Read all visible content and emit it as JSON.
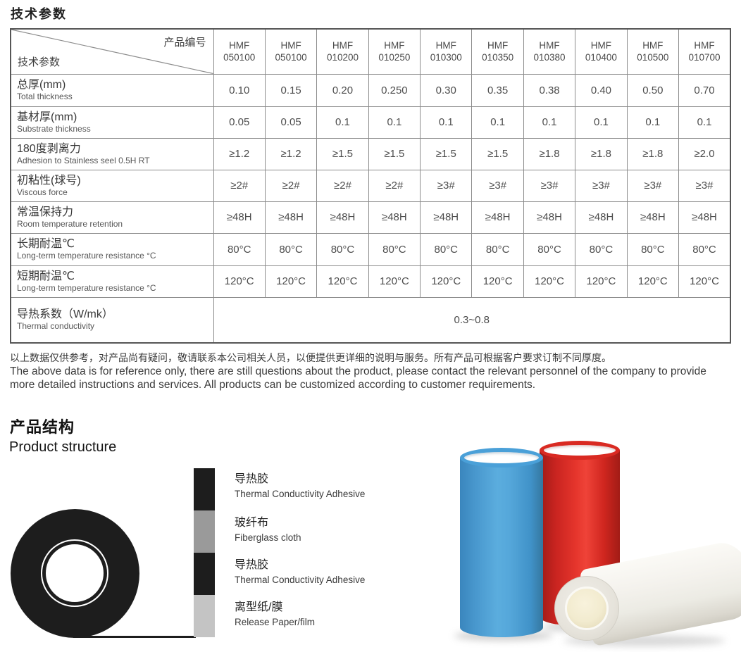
{
  "tech": {
    "title": "技术参数"
  },
  "table": {
    "corner": {
      "top_right": "产品编号",
      "bottom_left": "技术参数"
    },
    "columns": [
      {
        "line1": "HMF",
        "line2": "050100"
      },
      {
        "line1": "HMF",
        "line2": "050100"
      },
      {
        "line1": "HMF",
        "line2": "010200"
      },
      {
        "line1": "HMF",
        "line2": "010250"
      },
      {
        "line1": "HMF",
        "line2": "010300"
      },
      {
        "line1": "HMF",
        "line2": "010350"
      },
      {
        "line1": "HMF",
        "line2": "010380"
      },
      {
        "line1": "HMF",
        "line2": "010400"
      },
      {
        "line1": "HMF",
        "line2": "010500"
      },
      {
        "line1": "HMF",
        "line2": "010700"
      }
    ],
    "rows": [
      {
        "zh": "总厚(mm)",
        "en": "Total thickness",
        "values": [
          "0.10",
          "0.15",
          "0.20",
          "0.250",
          "0.30",
          "0.35",
          "0.38",
          "0.40",
          "0.50",
          "0.70"
        ]
      },
      {
        "zh": "基材厚(mm)",
        "en": "Substrate thickness",
        "values": [
          "0.05",
          "0.05",
          "0.1",
          "0.1",
          "0.1",
          "0.1",
          "0.1",
          "0.1",
          "0.1",
          "0.1"
        ]
      },
      {
        "zh": "180度剥离力",
        "en": "Adhesion to Stainless seel 0.5H RT",
        "values": [
          "≥1.2",
          "≥1.2",
          "≥1.5",
          "≥1.5",
          "≥1.5",
          "≥1.5",
          "≥1.8",
          "≥1.8",
          "≥1.8",
          "≥2.0"
        ]
      },
      {
        "zh": "初粘性(球号)",
        "en": "Viscous force",
        "values": [
          "≥2#",
          "≥2#",
          "≥2#",
          "≥2#",
          "≥3#",
          "≥3#",
          "≥3#",
          "≥3#",
          "≥3#",
          "≥3#"
        ]
      },
      {
        "zh": "常温保持力",
        "en": "Room temperature retention",
        "values": [
          "≥48H",
          "≥48H",
          "≥48H",
          "≥48H",
          "≥48H",
          "≥48H",
          "≥48H",
          "≥48H",
          "≥48H",
          "≥48H"
        ]
      },
      {
        "zh": "长期耐温℃",
        "en": "Long-term temperature resistance °C",
        "values": [
          "80°C",
          "80°C",
          "80°C",
          "80°C",
          "80°C",
          "80°C",
          "80°C",
          "80°C",
          "80°C",
          "80°C"
        ]
      },
      {
        "zh": "短期耐温℃",
        "en": "Long-term temperature resistance °C",
        "values": [
          "120°C",
          "120°C",
          "120°C",
          "120°C",
          "120°C",
          "120°C",
          "120°C",
          "120°C",
          "120°C",
          "120°C"
        ]
      }
    ],
    "merged_row": {
      "zh": "导热系数（W/mk）",
      "en": "Thermal conductivity",
      "value": "0.3~0.8"
    }
  },
  "disclaimer": {
    "zh": "以上数据仅供参考，对产品尚有疑问，敬请联系本公司相关人员，以便提供更详细的说明与服务。所有产品可根据客户要求订制不同厚度。",
    "en": "The above data is for reference only, there are still questions about the product, please contact the relevant personnel of the company to provide more detailed instructions and services. All products can be customized according to customer requirements."
  },
  "structure": {
    "title_zh": "产品结构",
    "title_en": "Product structure",
    "layers": [
      {
        "zh": "导热胶",
        "en": "Thermal Conductivity Adhesive",
        "color": "#1d1d1d"
      },
      {
        "zh": "玻纤布",
        "en": "Fiberglass cloth",
        "color": "#9a9a9a"
      },
      {
        "zh": "导热胶",
        "en": "Thermal Conductivity Adhesive",
        "color": "#1d1d1d"
      },
      {
        "zh": "离型纸/膜",
        "en": "Release Paper/film",
        "color": "#c4c4c4"
      }
    ]
  },
  "photo": {
    "roll_colors": {
      "blue": "#4aa0d8",
      "red": "#d92a22",
      "white": "#f1efe9",
      "core_cream": "#f2ebcf"
    }
  }
}
